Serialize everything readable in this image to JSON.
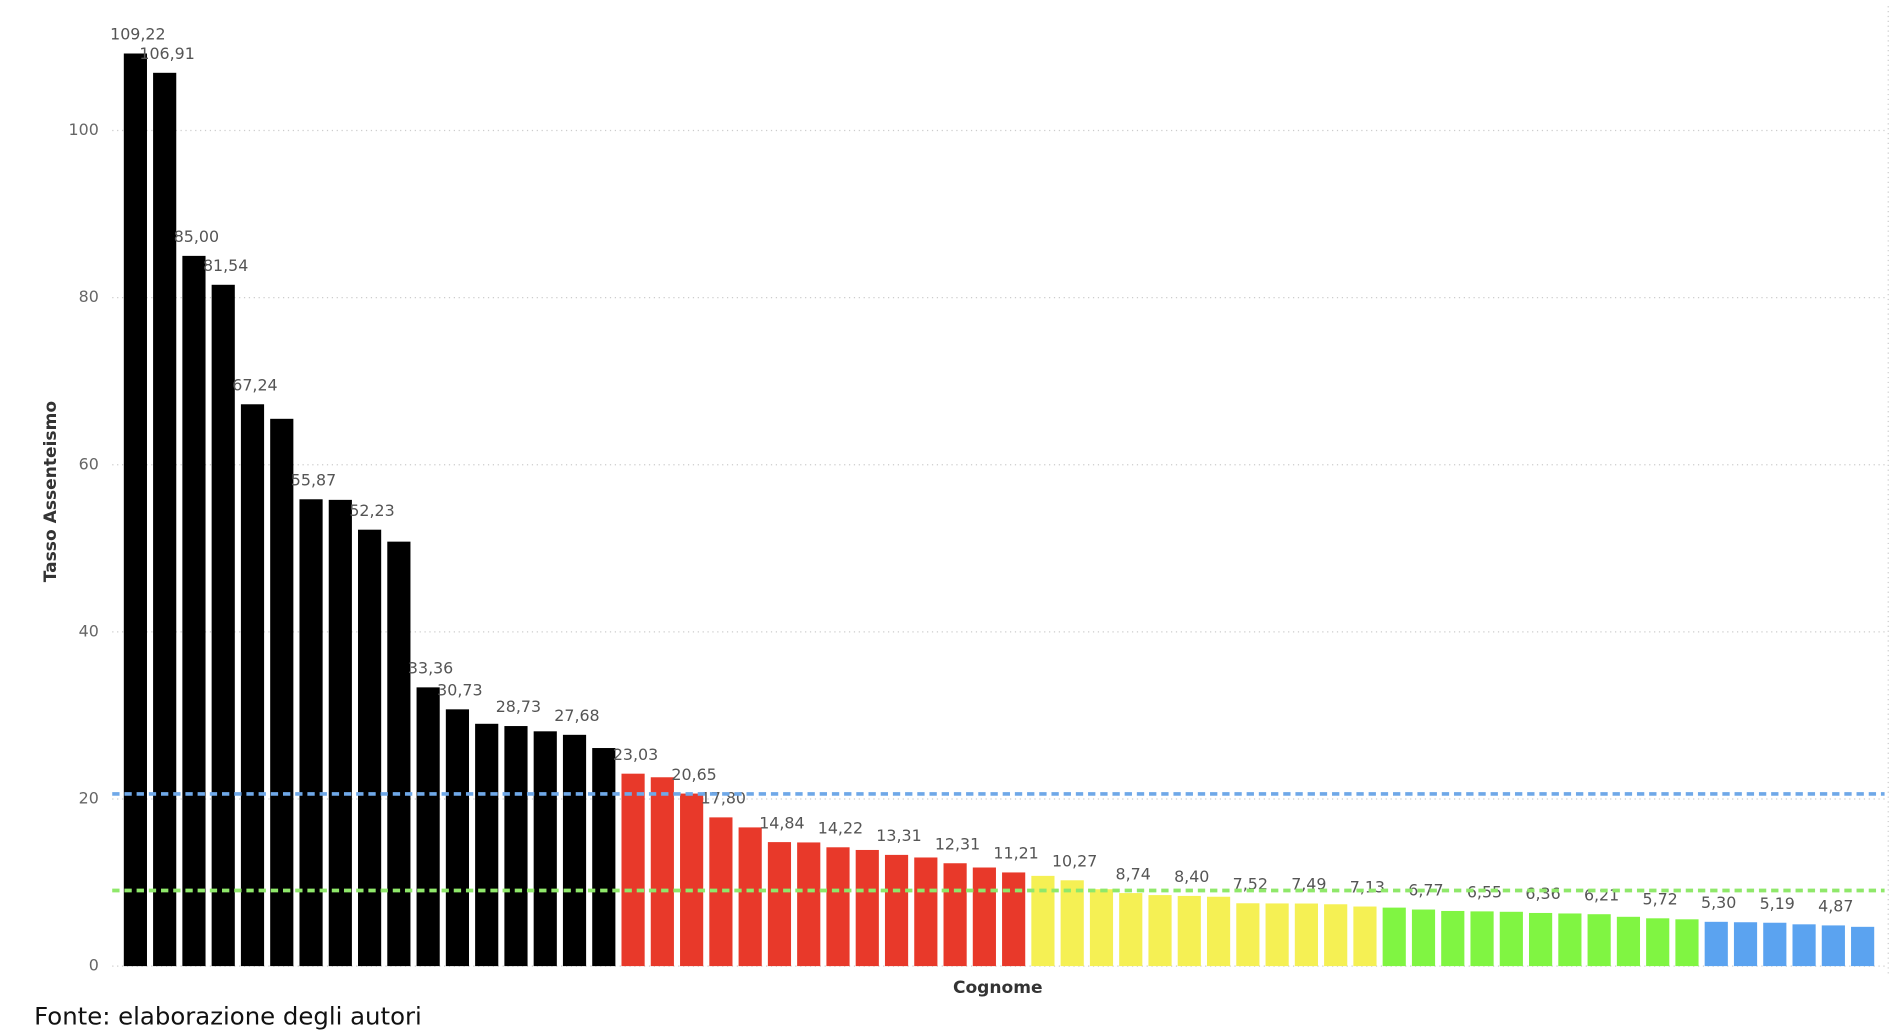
{
  "chart_data": {
    "type": "bar",
    "y_label": "Tasso Assenteismo",
    "x_label": "Cognome",
    "source": "Fonte: elaborazione degli autori",
    "categories": [
      null,
      null,
      null,
      null,
      null,
      null,
      null,
      null,
      null,
      null,
      null,
      null,
      null,
      null,
      null,
      null,
      null,
      null,
      null,
      null,
      null,
      null,
      null,
      null,
      null,
      null,
      null,
      null,
      null,
      null,
      null,
      null,
      null,
      null,
      null,
      null,
      null,
      null,
      null,
      null,
      null,
      null,
      null,
      null,
      null,
      null,
      null,
      null,
      null,
      null,
      null,
      null,
      null,
      null,
      null,
      null,
      null,
      null,
      null,
      null
    ],
    "values": [
      109.22,
      106.91,
      85.0,
      81.54,
      67.24,
      65.5,
      55.87,
      55.8,
      52.23,
      50.8,
      33.36,
      30.73,
      29.0,
      28.73,
      28.1,
      27.68,
      26.1,
      23.03,
      22.6,
      20.65,
      17.8,
      16.6,
      14.84,
      14.8,
      14.22,
      13.9,
      13.31,
      13.0,
      12.31,
      11.8,
      11.21,
      10.8,
      10.27,
      9.2,
      8.74,
      8.5,
      8.4,
      8.3,
      7.52,
      7.5,
      7.49,
      7.4,
      7.13,
      7.0,
      6.77,
      6.6,
      6.55,
      6.5,
      6.36,
      6.3,
      6.21,
      5.9,
      5.72,
      5.6,
      5.3,
      5.25,
      5.19,
      5.0,
      4.87,
      4.7
    ],
    "value_labels": [
      "109,22",
      "106,91",
      "85,00",
      "81,54",
      "67,24",
      null,
      "55,87",
      null,
      "52,23",
      null,
      "33,36",
      "30,73",
      null,
      "28,73",
      null,
      "27,68",
      null,
      "23,03",
      null,
      "20,65",
      "17,80",
      null,
      "14,84",
      null,
      "14,22",
      null,
      "13,31",
      null,
      "12,31",
      null,
      "11,21",
      null,
      "10,27",
      null,
      "8,74",
      null,
      "8,40",
      null,
      "7,52",
      null,
      "7,49",
      null,
      "7,13",
      null,
      "6,77",
      null,
      "6,55",
      null,
      "6,36",
      null,
      "6,21",
      null,
      "5,72",
      null,
      "5,30",
      null,
      "5,19",
      null,
      "4,87",
      null
    ],
    "colors": [
      "#000000",
      "#000000",
      "#000000",
      "#000000",
      "#000000",
      "#000000",
      "#000000",
      "#000000",
      "#000000",
      "#000000",
      "#000000",
      "#000000",
      "#000000",
      "#000000",
      "#000000",
      "#000000",
      "#000000",
      "#e8392a",
      "#e8392a",
      "#e8392a",
      "#e8392a",
      "#e8392a",
      "#e8392a",
      "#e8392a",
      "#e8392a",
      "#e8392a",
      "#e8392a",
      "#e8392a",
      "#e8392a",
      "#e8392a",
      "#e8392a",
      "#f5f054",
      "#f5f054",
      "#f5f054",
      "#f5f054",
      "#f5f054",
      "#f5f054",
      "#f5f054",
      "#f5f054",
      "#f5f054",
      "#f5f054",
      "#f5f054",
      "#f5f054",
      "#80f542",
      "#80f542",
      "#80f542",
      "#80f542",
      "#80f542",
      "#80f542",
      "#80f542",
      "#80f542",
      "#80f542",
      "#80f542",
      "#80f542",
      "#5ba3f0",
      "#5ba3f0",
      "#5ba3f0",
      "#5ba3f0",
      "#5ba3f0",
      "#5ba3f0"
    ],
    "reference_lines": [
      {
        "value": 20.6,
        "color": "#6fa8e8"
      },
      {
        "value": 9.05,
        "color": "#8fe86a"
      }
    ],
    "ylim": [
      0,
      112
    ],
    "yticks": [
      0,
      20,
      40,
      60,
      80,
      100
    ],
    "grid": true
  }
}
